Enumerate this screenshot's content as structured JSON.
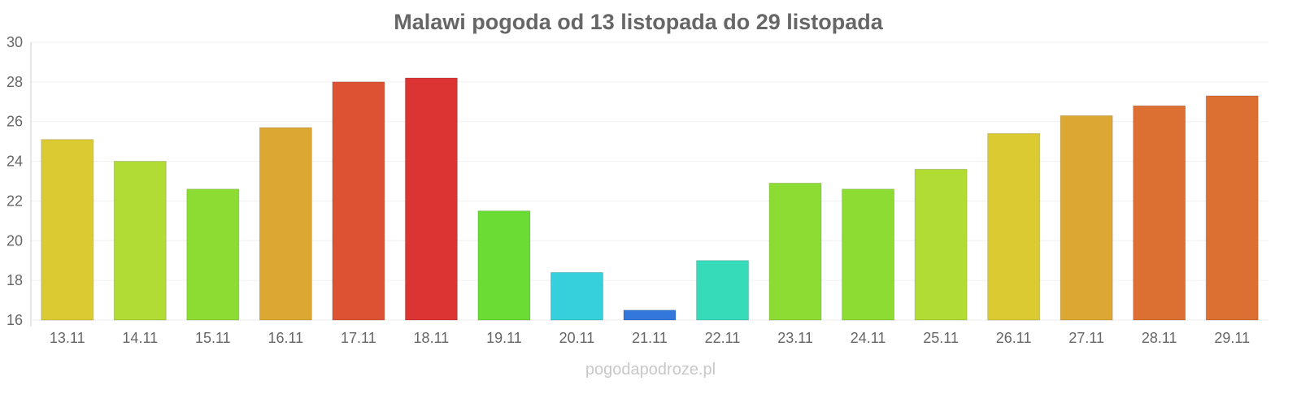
{
  "chart_data": {
    "type": "bar",
    "title": "Malawi pogoda od 13 listopada do 29 listopada",
    "xlabel": "",
    "ylabel": "",
    "ylim": [
      16,
      30
    ],
    "yticks": [
      16,
      18,
      20,
      22,
      24,
      26,
      28,
      30
    ],
    "grid": true,
    "categories": [
      "13.11",
      "14.11",
      "15.11",
      "16.11",
      "17.11",
      "18.11",
      "19.11",
      "20.11",
      "21.11",
      "22.11",
      "23.11",
      "24.11",
      "25.11",
      "26.11",
      "27.11",
      "28.11",
      "29.11"
    ],
    "values": [
      25.1,
      24.0,
      22.6,
      25.7,
      28.0,
      28.2,
      21.5,
      18.4,
      16.5,
      19.0,
      22.9,
      22.6,
      23.6,
      25.4,
      26.3,
      26.8,
      27.3
    ],
    "colors": [
      "#dcca33",
      "#b0dc33",
      "#8ddc33",
      "#dca833",
      "#dc5233",
      "#dc3333",
      "#6adc33",
      "#36cfdc",
      "#3377dc",
      "#36dcba",
      "#8ddc33",
      "#8ddc33",
      "#b0dc33",
      "#dcca33",
      "#dca833",
      "#dc7033",
      "#dc7033"
    ]
  },
  "watermark": "pogodapodroze.pl"
}
